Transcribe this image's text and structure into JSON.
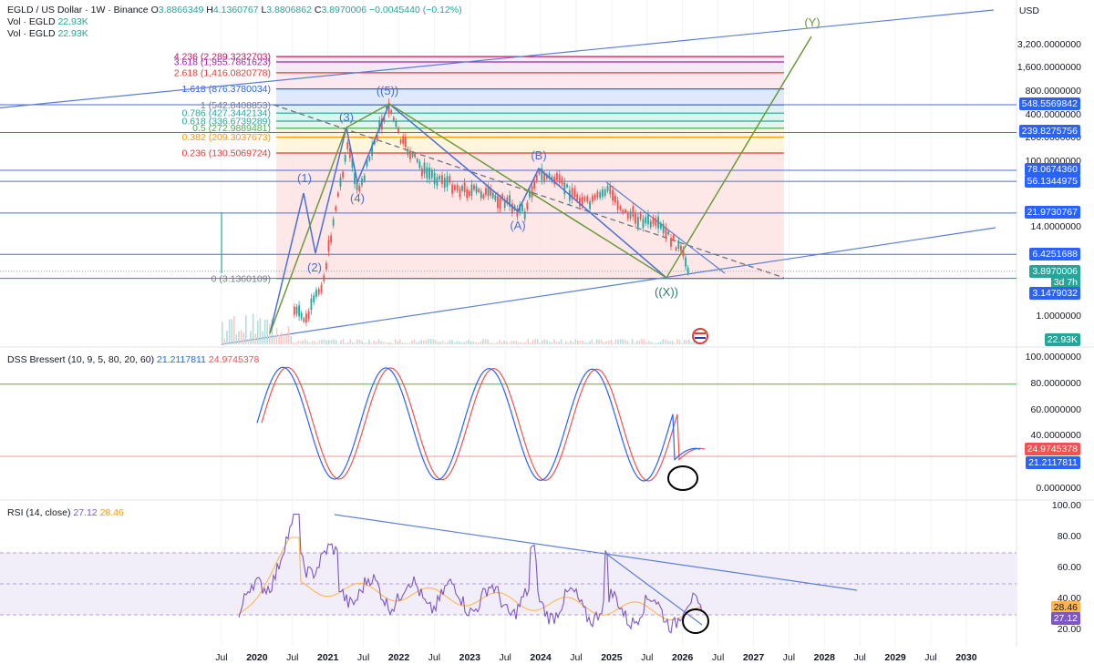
{
  "header": {
    "symbol": "EGLD / US Dollar · 1W · Binance",
    "ohlc": {
      "o_label": "O",
      "o": "3.8866349",
      "h_label": "H",
      "h": "4.1360767",
      "l_label": "L",
      "l": "3.8806862",
      "c_label": "C",
      "c": "3.8970006",
      "chg": "−0.0045440 (−0.12%)"
    },
    "vol1": "Vol · EGLD",
    "vol1_val": "22.93K",
    "vol2": "Vol · EGLD",
    "vol2_val": "22.93K",
    "currency": "USD"
  },
  "price_pane": {
    "axis_ticks": [
      "3,200.0000000",
      "1,600.0000000",
      "800.0000000",
      "400.0000000",
      "200.0000000",
      "100.0000000",
      "14.0000000",
      "1.0000000"
    ],
    "price_tags": [
      {
        "label": "548.5569842",
        "color": "#2962ff"
      },
      {
        "label": "239.8275756",
        "color": "#2962ff"
      },
      {
        "label": "78.0674360",
        "color": "#2962ff"
      },
      {
        "label": "56.1344975",
        "color": "#2962ff"
      },
      {
        "label": "21.9730767",
        "color": "#2962ff"
      },
      {
        "label": "6.4251688",
        "color": "#2962ff"
      },
      {
        "label": "3.8970006",
        "color": "#26a69a"
      },
      {
        "label": "3d 7h",
        "color": "#26a69a"
      },
      {
        "label": "3.1479032",
        "color": "#2962ff"
      },
      {
        "label": "22.93K",
        "color": "#26a69a"
      }
    ],
    "fib_levels": [
      {
        "label": "4.236 (2,289.3232703)",
        "color": "#c2185b"
      },
      {
        "label": "3.618 (1,955.7861623)",
        "color": "#9c27b0"
      },
      {
        "label": "2.618 (1,416.0820778)",
        "color": "#e53935"
      },
      {
        "label": "1.618 (876.3780034)",
        "color": "#2962ff"
      },
      {
        "label": "1 (542.8408853)",
        "color": "#787b86"
      },
      {
        "label": "0.786 (427.3442134)",
        "color": "#26a69a"
      },
      {
        "label": "0.618 (336.6739289)",
        "color": "#26a69a"
      },
      {
        "label": "0.5 (272.9889481)",
        "color": "#4caf50"
      },
      {
        "label": "0.382 (209.3037673)",
        "color": "#ff9800"
      },
      {
        "label": "0.236 (130.5069724)",
        "color": "#e53935"
      },
      {
        "label": "0 (3.1360109)",
        "color": "#787b86"
      }
    ],
    "wave_labels": [
      "(1)",
      "(2)",
      "(3)",
      "(4)",
      "((5))",
      "(A)",
      "(B)",
      "((X))",
      "(Y)"
    ]
  },
  "dss_pane": {
    "legend": "DSS Bressert (10, 9, 5, 80, 20, 60)",
    "val1": "21.2117811",
    "val2": "24.9745378",
    "axis_ticks": [
      "100.0000000",
      "80.0000000",
      "60.0000000",
      "40.0000000",
      "0.0000000"
    ],
    "tags": [
      {
        "label": "24.9745378",
        "color": "#ef5350"
      },
      {
        "label": "21.2117811",
        "color": "#2962ff"
      }
    ]
  },
  "rsi_pane": {
    "legend": "RSI (14, close)",
    "val1": "27.12",
    "val2": "28.46",
    "axis_ticks": [
      "100.00",
      "80.00",
      "60.00",
      "40.00",
      "20.00"
    ],
    "tags": [
      {
        "label": "28.46",
        "color": "#ffb74d",
        "text_color": "#131722"
      },
      {
        "label": "27.12",
        "color": "#7e57c2",
        "text_color": "#ffffff"
      }
    ]
  },
  "x_axis": {
    "labels": [
      {
        "text": "Jul",
        "year": false
      },
      {
        "text": "2020",
        "year": true
      },
      {
        "text": "Jul",
        "year": false
      },
      {
        "text": "2021",
        "year": true
      },
      {
        "text": "Jul",
        "year": false
      },
      {
        "text": "2022",
        "year": true
      },
      {
        "text": "Jul",
        "year": false
      },
      {
        "text": "2023",
        "year": true
      },
      {
        "text": "Jul",
        "year": false
      },
      {
        "text": "2024",
        "year": true
      },
      {
        "text": "Jul",
        "year": false
      },
      {
        "text": "2025",
        "year": true
      },
      {
        "text": "Jul",
        "year": false
      },
      {
        "text": "2026",
        "year": true
      },
      {
        "text": "Jul",
        "year": false
      },
      {
        "text": "2027",
        "year": true
      },
      {
        "text": "Jul",
        "year": false
      },
      {
        "text": "2028",
        "year": true
      },
      {
        "text": "Jul",
        "year": false
      },
      {
        "text": "2029",
        "year": true
      },
      {
        "text": "Jul",
        "year": false
      },
      {
        "text": "2030",
        "year": true
      }
    ]
  },
  "colors": {
    "grid": "#f0f3fa",
    "axis_text": "#131722",
    "candle_up": "#26a69a",
    "candle_down": "#ef5350",
    "trendline": "#5b7fd6",
    "wave_green": "#6b9a3a",
    "dss_k": "#2962ff",
    "dss_d": "#ef5350",
    "rsi": "#7e57c2",
    "rsi_ma": "#ffb74d"
  },
  "chart_data": {
    "type": "line",
    "title": "EGLD / US Dollar · 1W · Binance",
    "ylabel": "USD",
    "y_scale": "log",
    "ylim": [
      0.7,
      3500
    ],
    "series": [
      {
        "name": "EGLD / US Dollar",
        "x": [
          "2020-07",
          "2020-09",
          "2020-12",
          "2021-02",
          "2021-04",
          "2021-06",
          "2021-09",
          "2021-11",
          "2022-01",
          "2022-05",
          "2022-08",
          "2022-11",
          "2023-03",
          "2023-07",
          "2023-10",
          "2023-12",
          "2024-03",
          "2024-06",
          "2024-09",
          "2024-12",
          "2025-03",
          "2025-06",
          "2025-09",
          "2025-12",
          "2026-02"
        ],
        "values": [
          1.2,
          0.9,
          3.2,
          26,
          160,
          40,
          230,
          542,
          190,
          75,
          60,
          45,
          40,
          30,
          22,
          70,
          60,
          40,
          28,
          45,
          22,
          18,
          14,
          8,
          3.9
        ]
      }
    ],
    "indicators": {
      "dss_bressert": {
        "params": "10, 9, 5, 80, 20, 60",
        "last": [
          21.2117811,
          24.9745378
        ],
        "levels": [
          80,
          20
        ]
      },
      "rsi": {
        "params": "14, close",
        "last": [
          27.12,
          28.46
        ],
        "levels": [
          70,
          50,
          30
        ]
      }
    }
  }
}
